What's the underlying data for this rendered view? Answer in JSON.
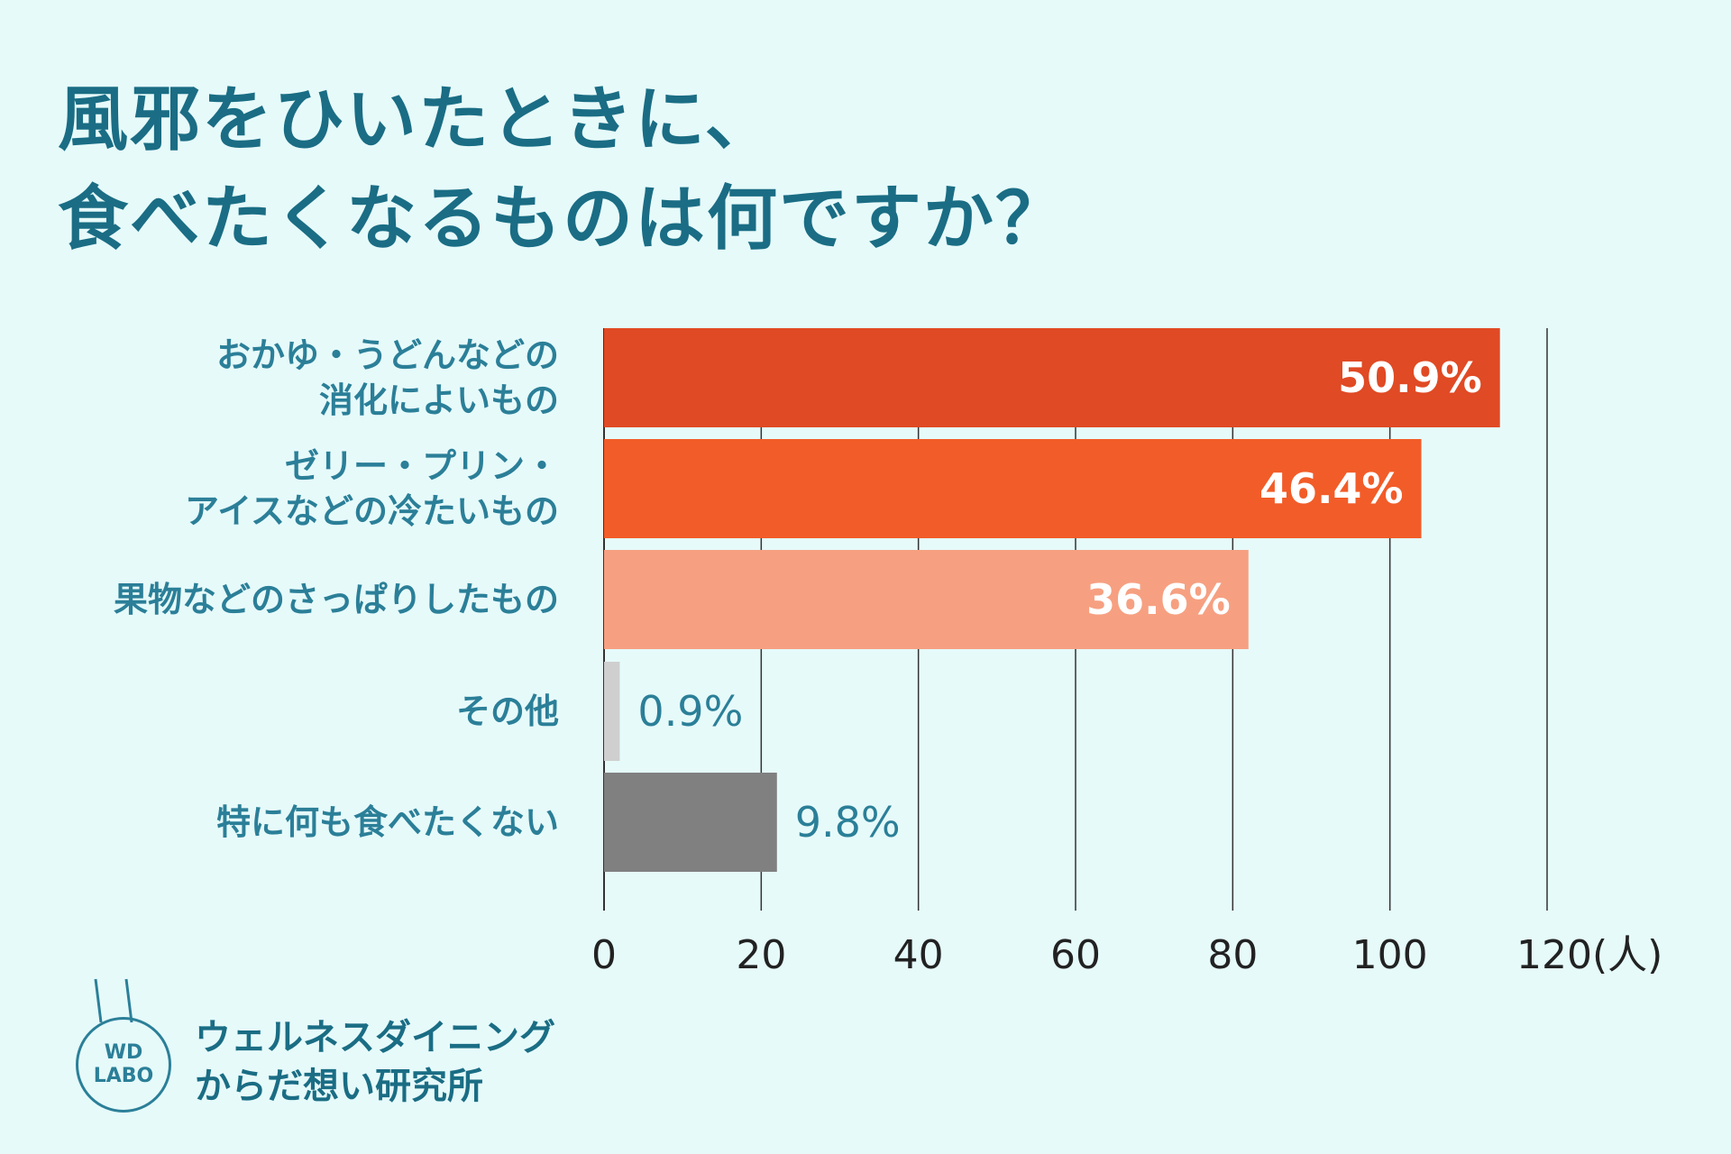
{
  "title_lines": [
    "風邪をひいたときに、",
    "食べたくなるものは何ですか？"
  ],
  "brand": {
    "logo_line1": "WD",
    "logo_line2": "LABO",
    "name_line1": "ウェルネスダイニング",
    "name_line2": "からだ想い研究所"
  },
  "chart_data": {
    "type": "bar",
    "orientation": "horizontal",
    "categories": [
      "おかゆ・うどんなどの 消化によいもの",
      "ゼリー・プリン・ アイスなどの冷たいもの",
      "果物などのさっぱりしたもの",
      "その他",
      "特に何も食べたくない"
    ],
    "category_lines": [
      [
        "おかゆ・うどんなどの",
        "消化によいもの"
      ],
      [
        "ゼリー・プリン・",
        "アイスなどの冷たいもの"
      ],
      [
        "果物などのさっぱりしたもの"
      ],
      [
        "その他"
      ],
      [
        "特に何も食べたくない"
      ]
    ],
    "values": [
      114,
      104,
      82,
      2,
      22
    ],
    "data_labels": [
      "50.9%",
      "46.4%",
      "36.6%",
      "0.9%",
      "9.8%"
    ],
    "colors": [
      "#e04a24",
      "#f25c28",
      "#f6a081",
      "#cfcfcf",
      "#808080"
    ],
    "x_ticks": [
      "0",
      "20",
      "40",
      "60",
      "80",
      "100",
      "120(人)"
    ],
    "xlim": [
      0,
      120
    ],
    "grid": true
  }
}
